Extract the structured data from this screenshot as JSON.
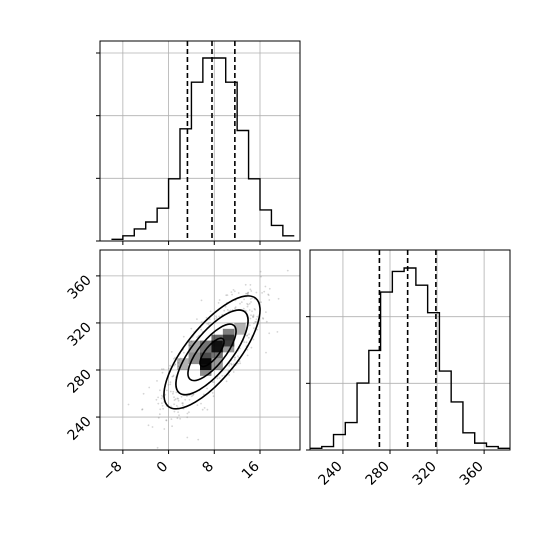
{
  "chart_data": [
    {
      "type": "histogram",
      "panel": "marginal-param-1",
      "xlim": [
        -12,
        23
      ],
      "bin_edges": [
        -10,
        -8,
        -6,
        -4,
        -2,
        0,
        2,
        4,
        6,
        8,
        10,
        12,
        14,
        16,
        18,
        20,
        22
      ],
      "counts": [
        1,
        3,
        7,
        11,
        19,
        36,
        65,
        92,
        106,
        106,
        92,
        64,
        36,
        18,
        9,
        3
      ],
      "quantiles": [
        3.3,
        7.6,
        11.6
      ],
      "grid": true
    },
    {
      "type": "heatmap",
      "panel": "joint-2d",
      "subtype": "2d-histogram-with-contours",
      "xlim": [
        -12,
        23
      ],
      "ylim": [
        212,
        382
      ],
      "xticks": [
        "−8",
        "0",
        "8",
        "16"
      ],
      "yticks": [
        "240",
        "280",
        "320",
        "360"
      ],
      "mean": [
        7.6,
        295
      ],
      "contour_levels_sigma": [
        0.5,
        1.0,
        1.5,
        2.0
      ],
      "grid": true
    },
    {
      "type": "histogram",
      "panel": "marginal-param-2",
      "xlim": [
        212,
        382
      ],
      "bin_edges": [
        212,
        222,
        232,
        242,
        252,
        262,
        272,
        282,
        292,
        302,
        312,
        322,
        332,
        342,
        352,
        362,
        372,
        382
      ],
      "counts": [
        1,
        2,
        9,
        16,
        39,
        58,
        92,
        104,
        106,
        96,
        80,
        46,
        28,
        10,
        4,
        2,
        1
      ],
      "quantiles": [
        271,
        295,
        319
      ],
      "xticks": [
        "240",
        "280",
        "320",
        "360"
      ],
      "grid": true
    }
  ]
}
